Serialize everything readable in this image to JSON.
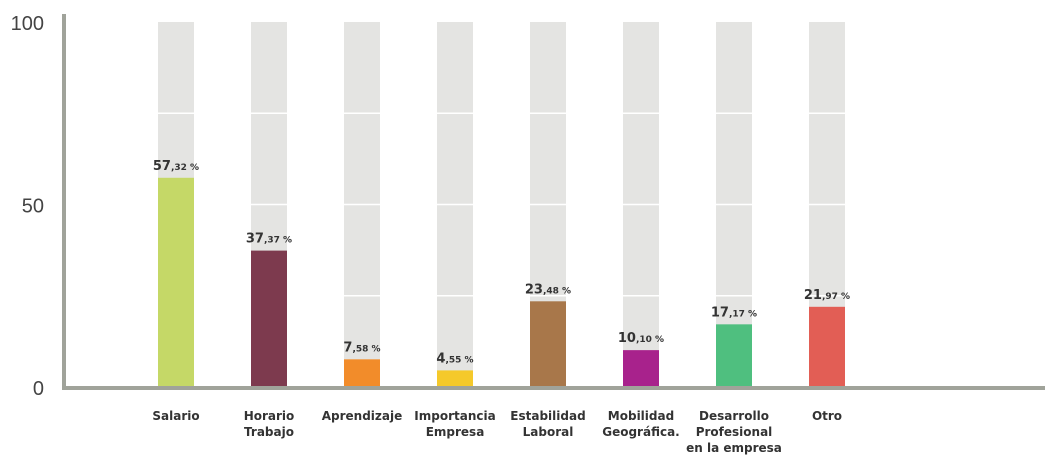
{
  "chart_data": {
    "type": "bar",
    "categories": [
      [
        "Salario"
      ],
      [
        "Horario",
        "Trabajo"
      ],
      [
        "Aprendizaje"
      ],
      [
        "Importancia",
        "Empresa"
      ],
      [
        "Estabilidad",
        "Laboral"
      ],
      [
        "Mobilidad",
        "Geográfica."
      ],
      [
        "Desarrollo",
        "Profesional",
        "en la empresa"
      ],
      [
        "Otro"
      ]
    ],
    "values": [
      57.32,
      37.37,
      7.58,
      4.55,
      23.48,
      10.1,
      17.17,
      21.97
    ],
    "value_labels": [
      {
        "main": "57",
        "dec": ",32 %"
      },
      {
        "main": "37",
        "dec": ",37 %"
      },
      {
        "main": "7",
        "dec": ",58 %"
      },
      {
        "main": "4",
        "dec": ",55 %"
      },
      {
        "main": "23",
        "dec": ",48 %"
      },
      {
        "main": "10",
        "dec": ",10 %"
      },
      {
        "main": "17",
        "dec": ",17 %"
      },
      {
        "main": "21",
        "dec": ",97 %"
      }
    ],
    "colors": [
      "#c5d867",
      "#7d3a4e",
      "#f28c2a",
      "#f5c92a",
      "#a8774a",
      "#a8228c",
      "#4fbf7f",
      "#e25e55"
    ],
    "background_bar_color": "#e4e4e2",
    "axis_color": "#a0a39a",
    "yticks": [
      "0",
      "50",
      "100"
    ],
    "ylim": [
      0,
      100
    ],
    "title": "",
    "xlabel": "",
    "ylabel": "",
    "grid": false,
    "legend": "none"
  }
}
